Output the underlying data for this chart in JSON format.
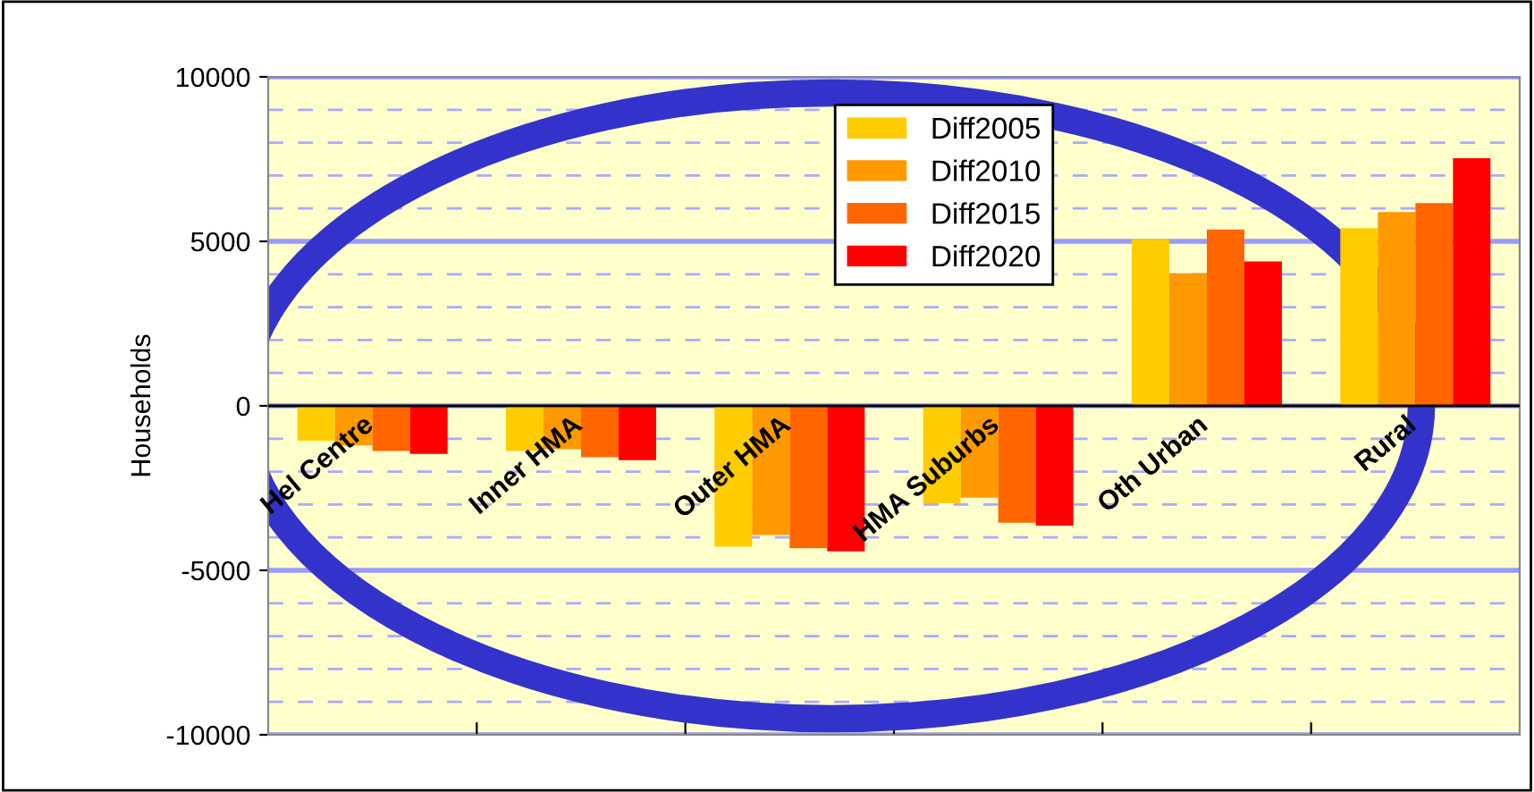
{
  "chart_data": {
    "type": "bar",
    "ylabel": "Households",
    "categories": [
      "Hel Centre",
      "Inner HMA",
      "Outer HMA",
      "HMA Suburbs",
      "Oth Urban",
      "Rural"
    ],
    "series": [
      {
        "name": "Diff2005",
        "color": "#ffcc00",
        "values": [
          -1060,
          -1370,
          -4280,
          -2960,
          5070,
          5400
        ]
      },
      {
        "name": "Diff2010",
        "color": "#ff9900",
        "values": [
          -1200,
          -1320,
          -3930,
          -2790,
          4030,
          5890
        ]
      },
      {
        "name": "Diff2015",
        "color": "#ff6600",
        "values": [
          -1370,
          -1560,
          -4330,
          -3550,
          5360,
          6160
        ]
      },
      {
        "name": "Diff2020",
        "color": "#ff0000",
        "values": [
          -1460,
          -1650,
          -4420,
          -3640,
          4390,
          7530
        ]
      }
    ],
    "ylim": [
      -10000,
      10000
    ],
    "yticks": [
      -10000,
      {
        "value": -9000,
        "label": null
      },
      {
        "value": -8000,
        "label": null
      },
      {
        "value": -7000,
        "label": null
      },
      {
        "value": -6000,
        "label": null
      },
      -5000,
      {
        "value": -4000,
        "label": null
      },
      {
        "value": -3000,
        "label": null
      },
      {
        "value": -2000,
        "label": null
      },
      {
        "value": -1000,
        "label": null
      },
      0,
      {
        "value": 1000,
        "label": null
      },
      {
        "value": 2000,
        "label": null
      },
      {
        "value": 3000,
        "label": null
      },
      {
        "value": 4000,
        "label": null
      },
      5000,
      {
        "value": 6000,
        "label": null
      },
      {
        "value": 7000,
        "label": null
      },
      {
        "value": 8000,
        "label": null
      },
      {
        "value": 9000,
        "label": null
      },
      10000
    ],
    "grid": "y",
    "legend": "top"
  }
}
